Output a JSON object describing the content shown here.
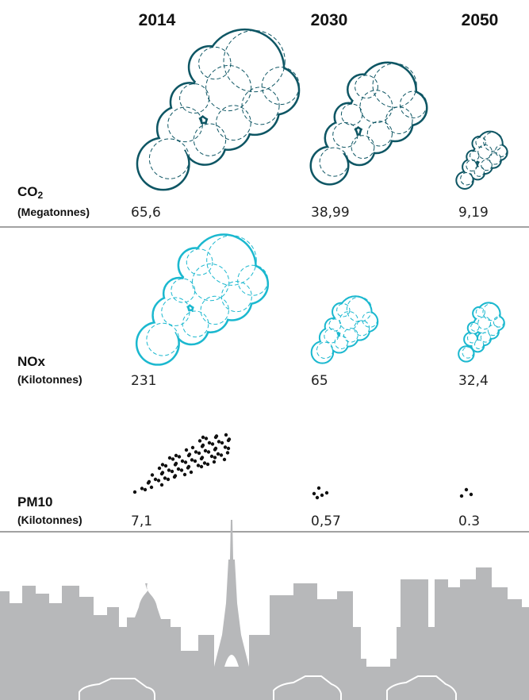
{
  "years": [
    "2014",
    "2030",
    "2050"
  ],
  "rows": [
    {
      "label": "CO",
      "label_sub": "2",
      "unit": "(Megatonnes)",
      "values": [
        "65,6",
        "38,99",
        "9,19"
      ]
    },
    {
      "label": "NOx",
      "unit": "(Kilotonnes)",
      "values": [
        "231",
        "65",
        "32,4"
      ]
    },
    {
      "label": "PM10",
      "unit": "(Kilotonnes)",
      "values": [
        "7,1",
        "0,57",
        "0.3"
      ]
    }
  ]
}
